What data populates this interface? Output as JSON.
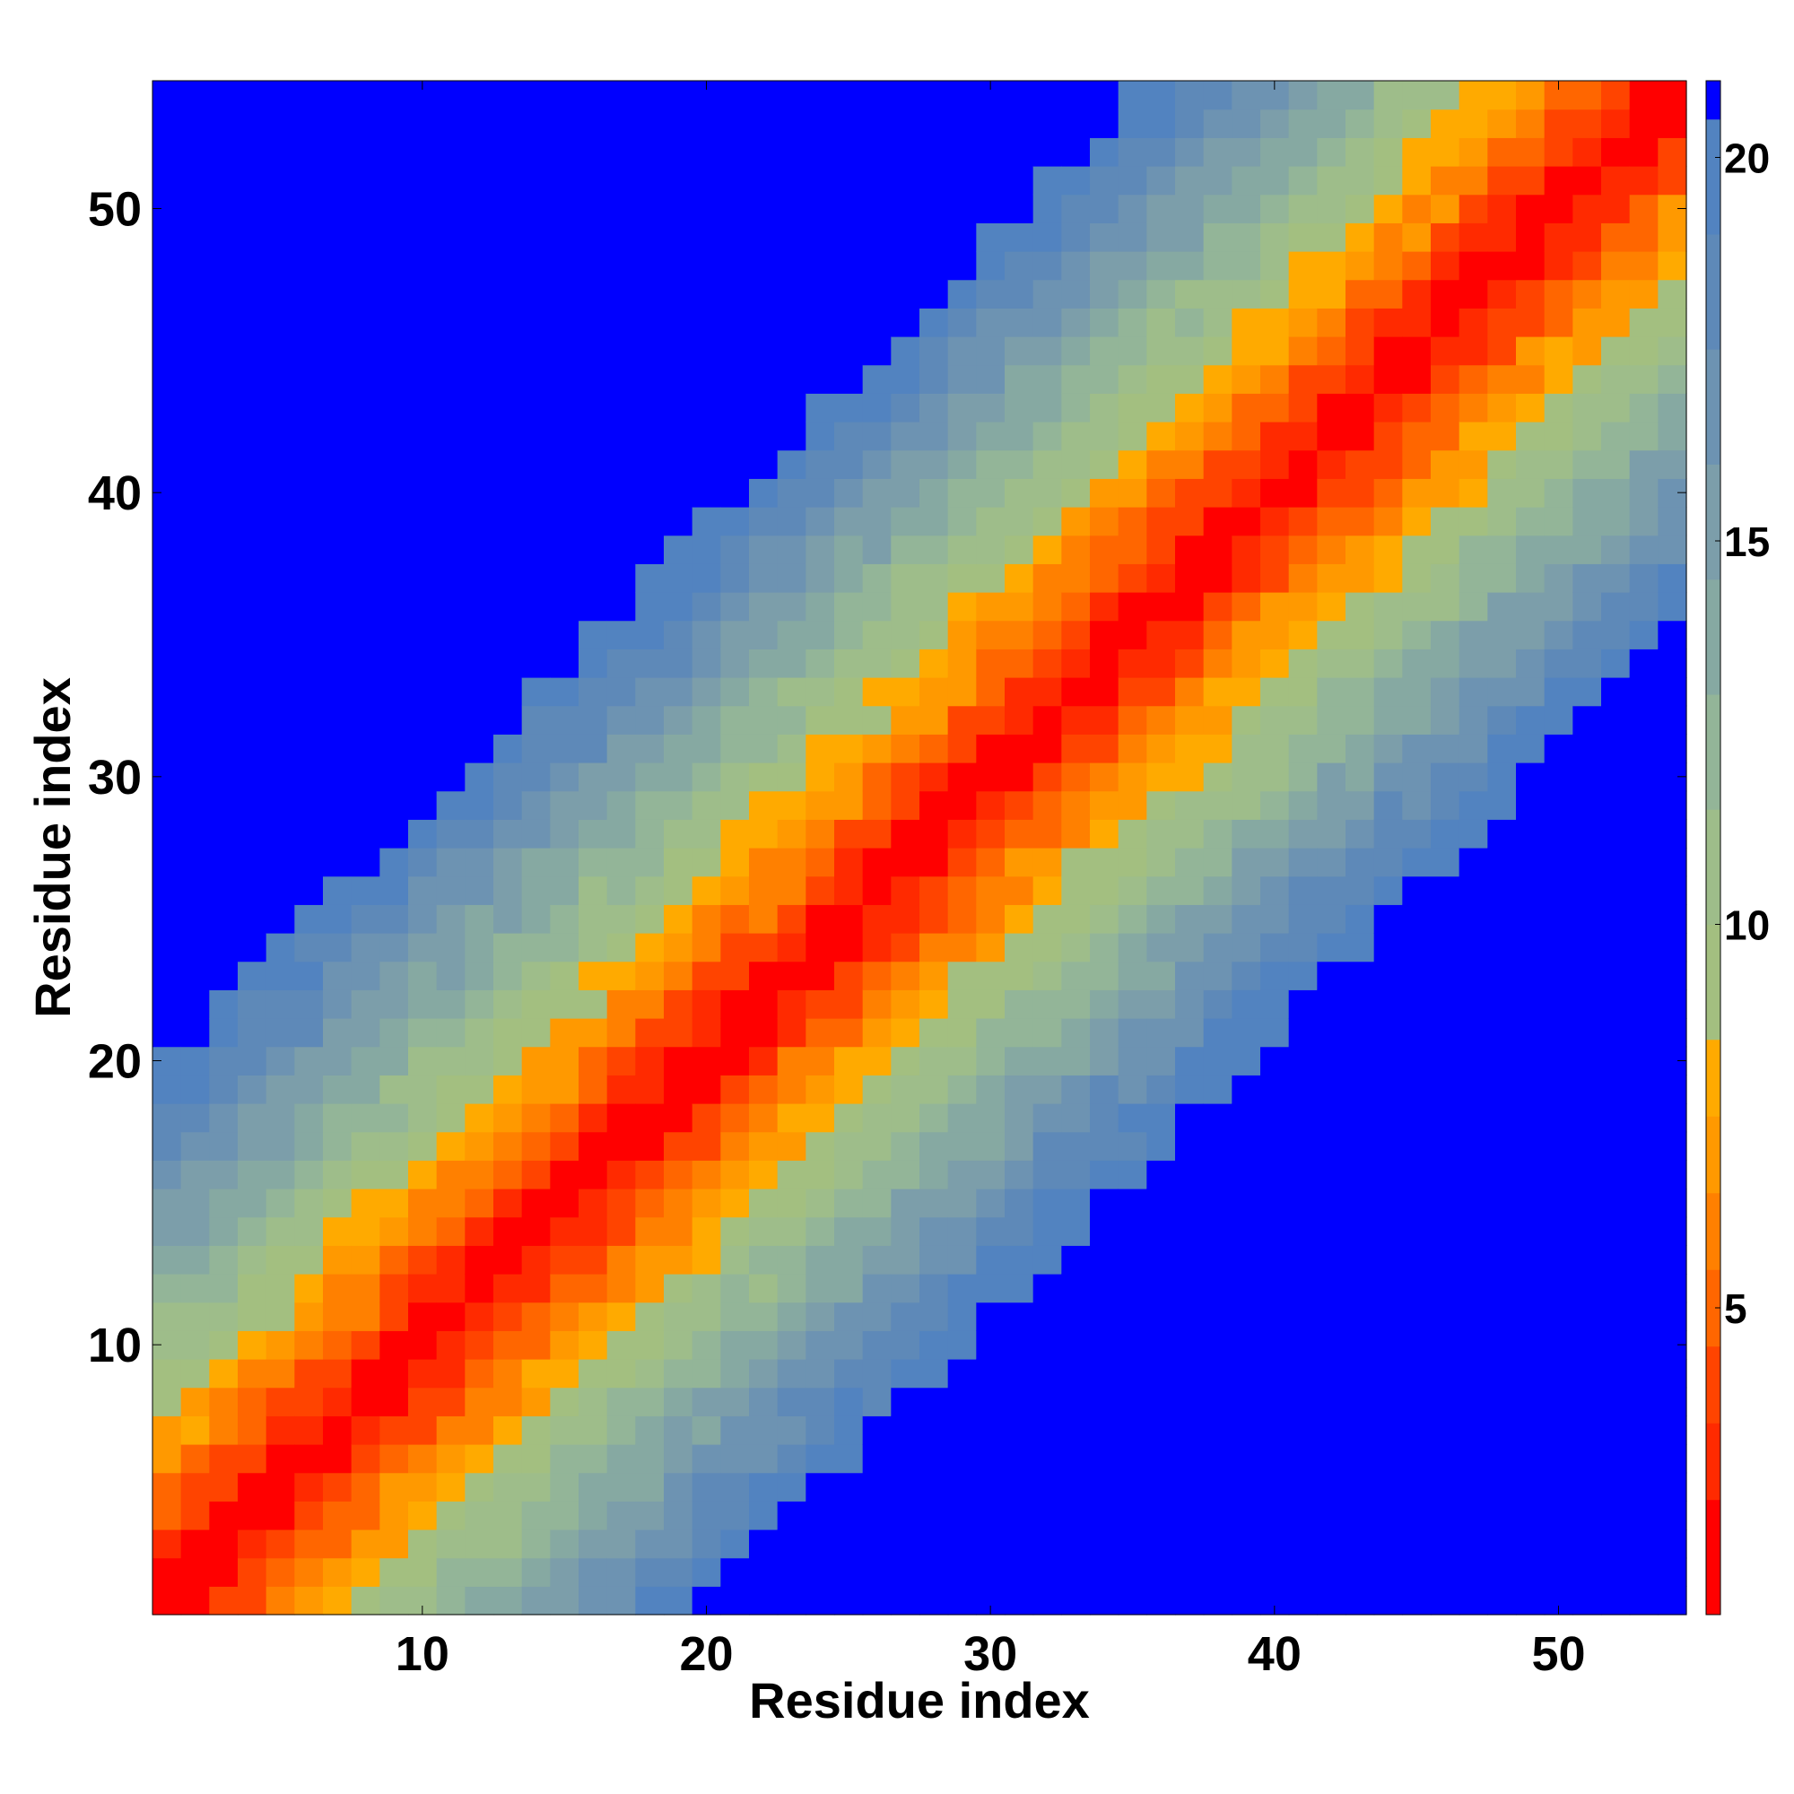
{
  "chart_data": {
    "type": "heatmap",
    "title": "",
    "xlabel": "Residue index",
    "ylabel": "Residue index",
    "n": 54,
    "xlim": [
      0.5,
      54.5
    ],
    "ylim": [
      0.5,
      54.5
    ],
    "xticks": [
      10,
      20,
      30,
      40,
      50
    ],
    "yticks": [
      10,
      20,
      30,
      40,
      50
    ],
    "colorbar": {
      "range": [
        1,
        21
      ],
      "ticks": [
        5,
        10,
        15,
        20
      ],
      "levels": [
        {
          "min": 1,
          "max": 2.5,
          "color": "#ff0000"
        },
        {
          "min": 2.5,
          "max": 3.5,
          "color": "#ff2a00"
        },
        {
          "min": 3.5,
          "max": 4.5,
          "color": "#ff4400"
        },
        {
          "min": 4.5,
          "max": 5.5,
          "color": "#ff6600"
        },
        {
          "min": 5.5,
          "max": 6.5,
          "color": "#ff8000"
        },
        {
          "min": 6.5,
          "max": 7.5,
          "color": "#ff9900"
        },
        {
          "min": 7.5,
          "max": 8.5,
          "color": "#ffaa00"
        },
        {
          "min": 8.5,
          "max": 10,
          "color": "#a3bf80"
        },
        {
          "min": 10,
          "max": 11.5,
          "color": "#9ebd8a"
        },
        {
          "min": 11.5,
          "max": 13,
          "color": "#93b598"
        },
        {
          "min": 13,
          "max": 14.5,
          "color": "#86a9a2"
        },
        {
          "min": 14.5,
          "max": 16,
          "color": "#7c9eaa"
        },
        {
          "min": 16,
          "max": 17.5,
          "color": "#6d93b2"
        },
        {
          "min": 17.5,
          "max": 19,
          "color": "#5e89b8"
        },
        {
          "min": 19,
          "max": 20.5,
          "color": "#5283c0"
        },
        {
          "min": 20.5,
          "max": 21,
          "color": "#0000ff"
        }
      ]
    },
    "matrix_model": {
      "description_free": true,
      "diagonal_value": 1,
      "per_residue_step": 0.58,
      "cutoff": 20.5,
      "cutoff_color": "#0000ff"
    }
  }
}
